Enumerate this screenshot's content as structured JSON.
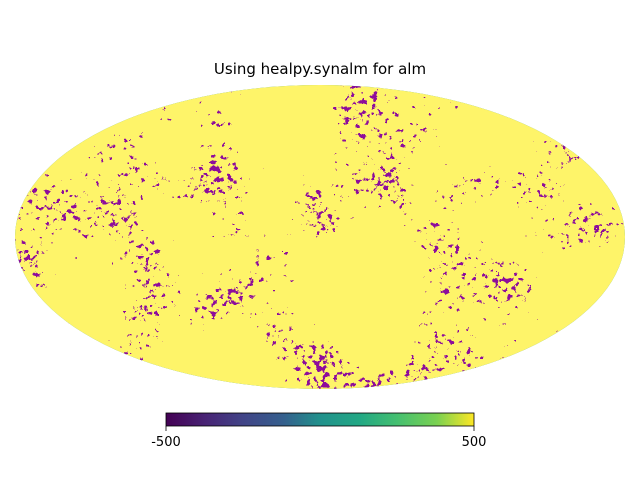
{
  "chart_data": {
    "type": "heatmap",
    "projection": "mollweide",
    "title": "Using healpy.synalm for alm",
    "colormap": "viridis",
    "colorbar": {
      "min": -500,
      "max": 500,
      "min_label": "-500",
      "max_label": "500",
      "orientation": "horizontal",
      "placement": "bottom-center"
    }
  }
}
